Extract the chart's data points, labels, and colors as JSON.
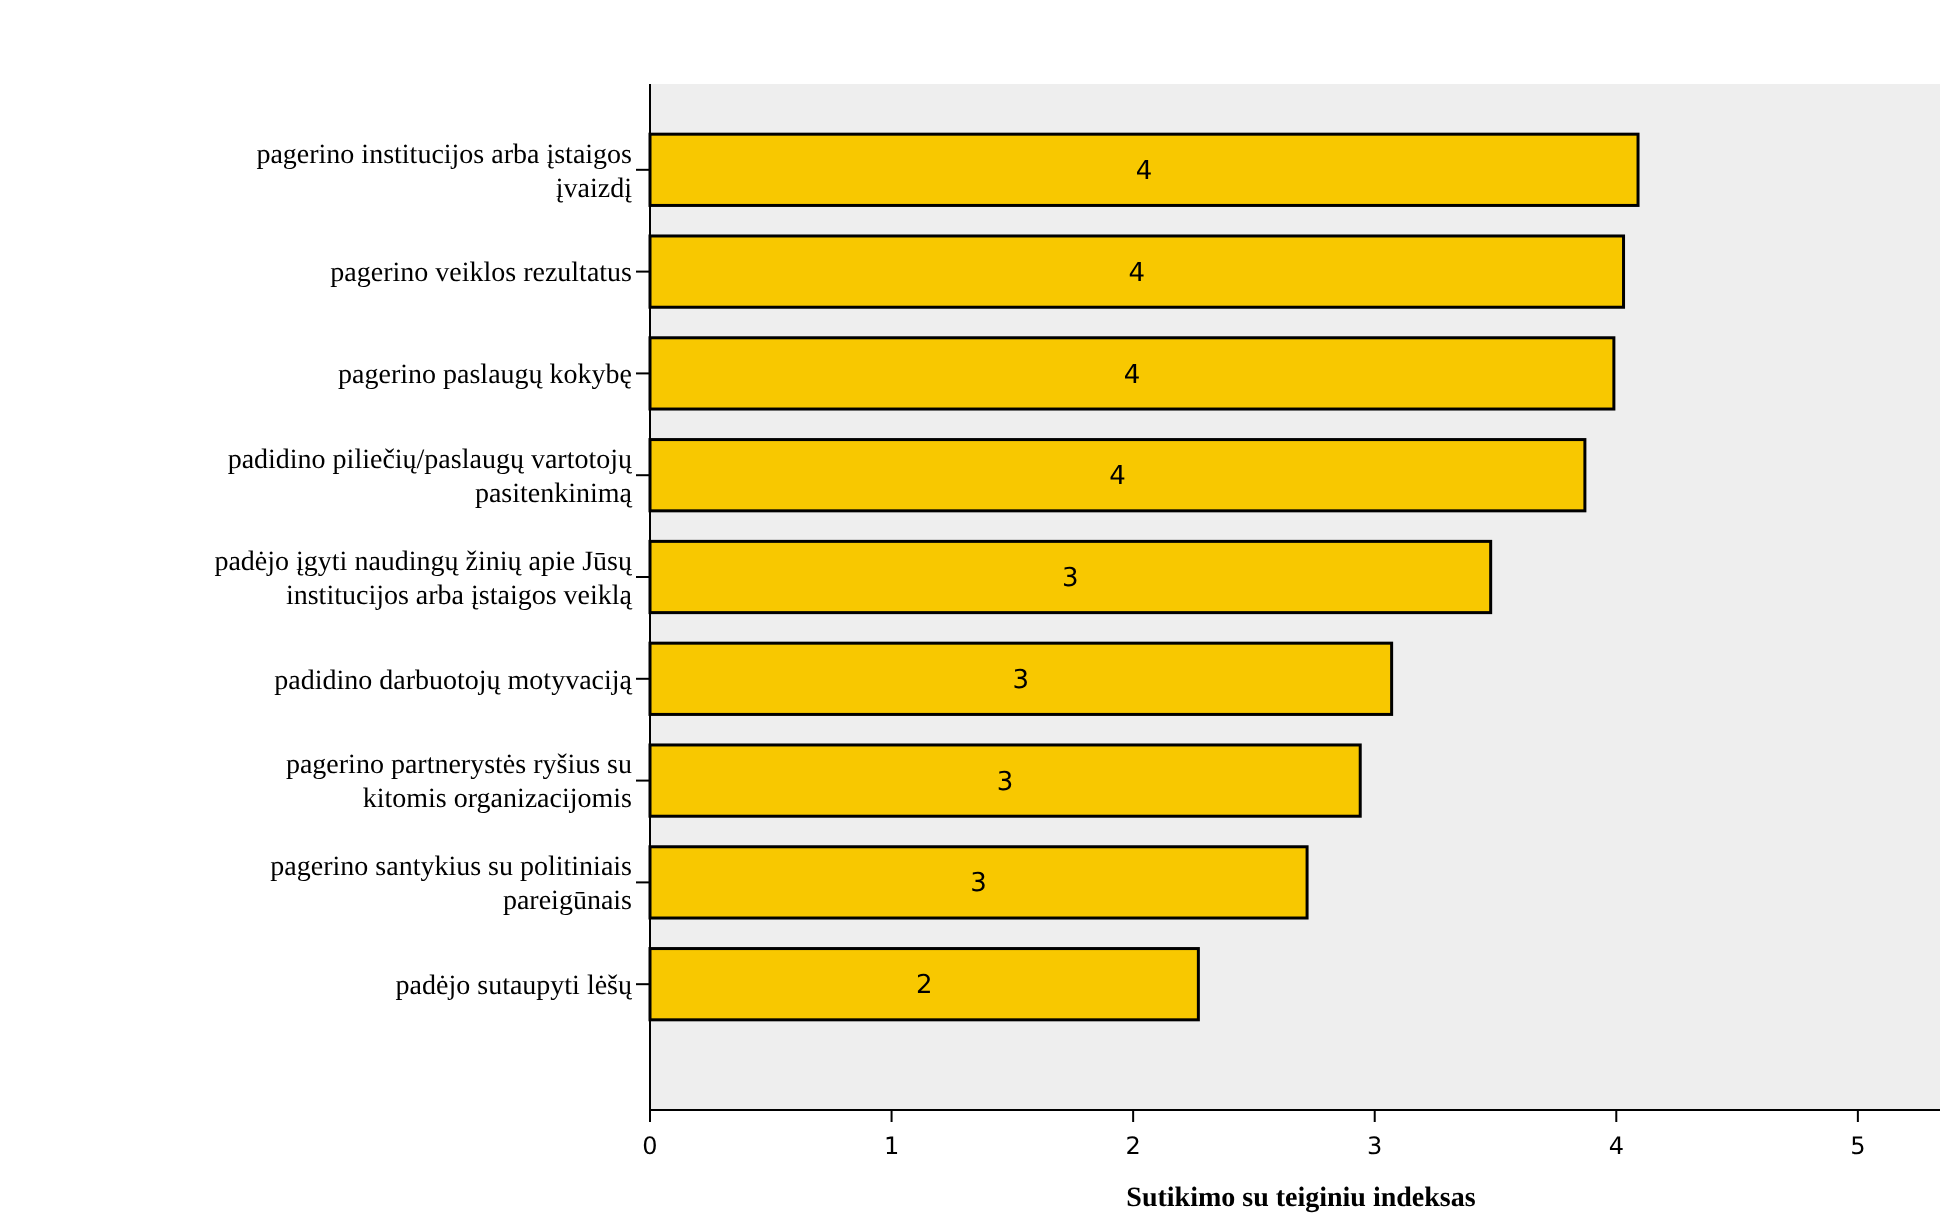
{
  "chart_data": {
    "type": "bar",
    "orientation": "horizontal",
    "xlabel": "Sutikimo su teiginiu indeksas",
    "categories": [
      "pagerino institucijos arba įstaigos įvaizdį",
      "pagerino veiklos rezultatus",
      "pagerino paslaugų kokybę",
      "padidino piliečių/paslaugų vartotojų pasitenkinimą",
      "padėjo įgyti naudingų žinių apie Jūsų institucijos arba įstaigos veiklą",
      "padidino darbuotojų motyvaciją",
      "pagerino partnerystės ryšius su kitomis organizacijomis",
      "pagerino santykius su politiniais pareigūnais",
      "padėjo sutaupyti lėšų"
    ],
    "values": [
      4.09,
      4.03,
      3.99,
      3.87,
      3.48,
      3.07,
      2.94,
      2.72,
      2.27
    ],
    "value_labels": [
      "4",
      "4",
      "4",
      "4",
      "3",
      "3",
      "3",
      "3",
      "2"
    ],
    "color": "#f8c800",
    "xlim": [
      0,
      5.34
    ],
    "xticks": [
      0,
      1,
      2,
      3,
      4,
      5
    ],
    "grid": false
  }
}
